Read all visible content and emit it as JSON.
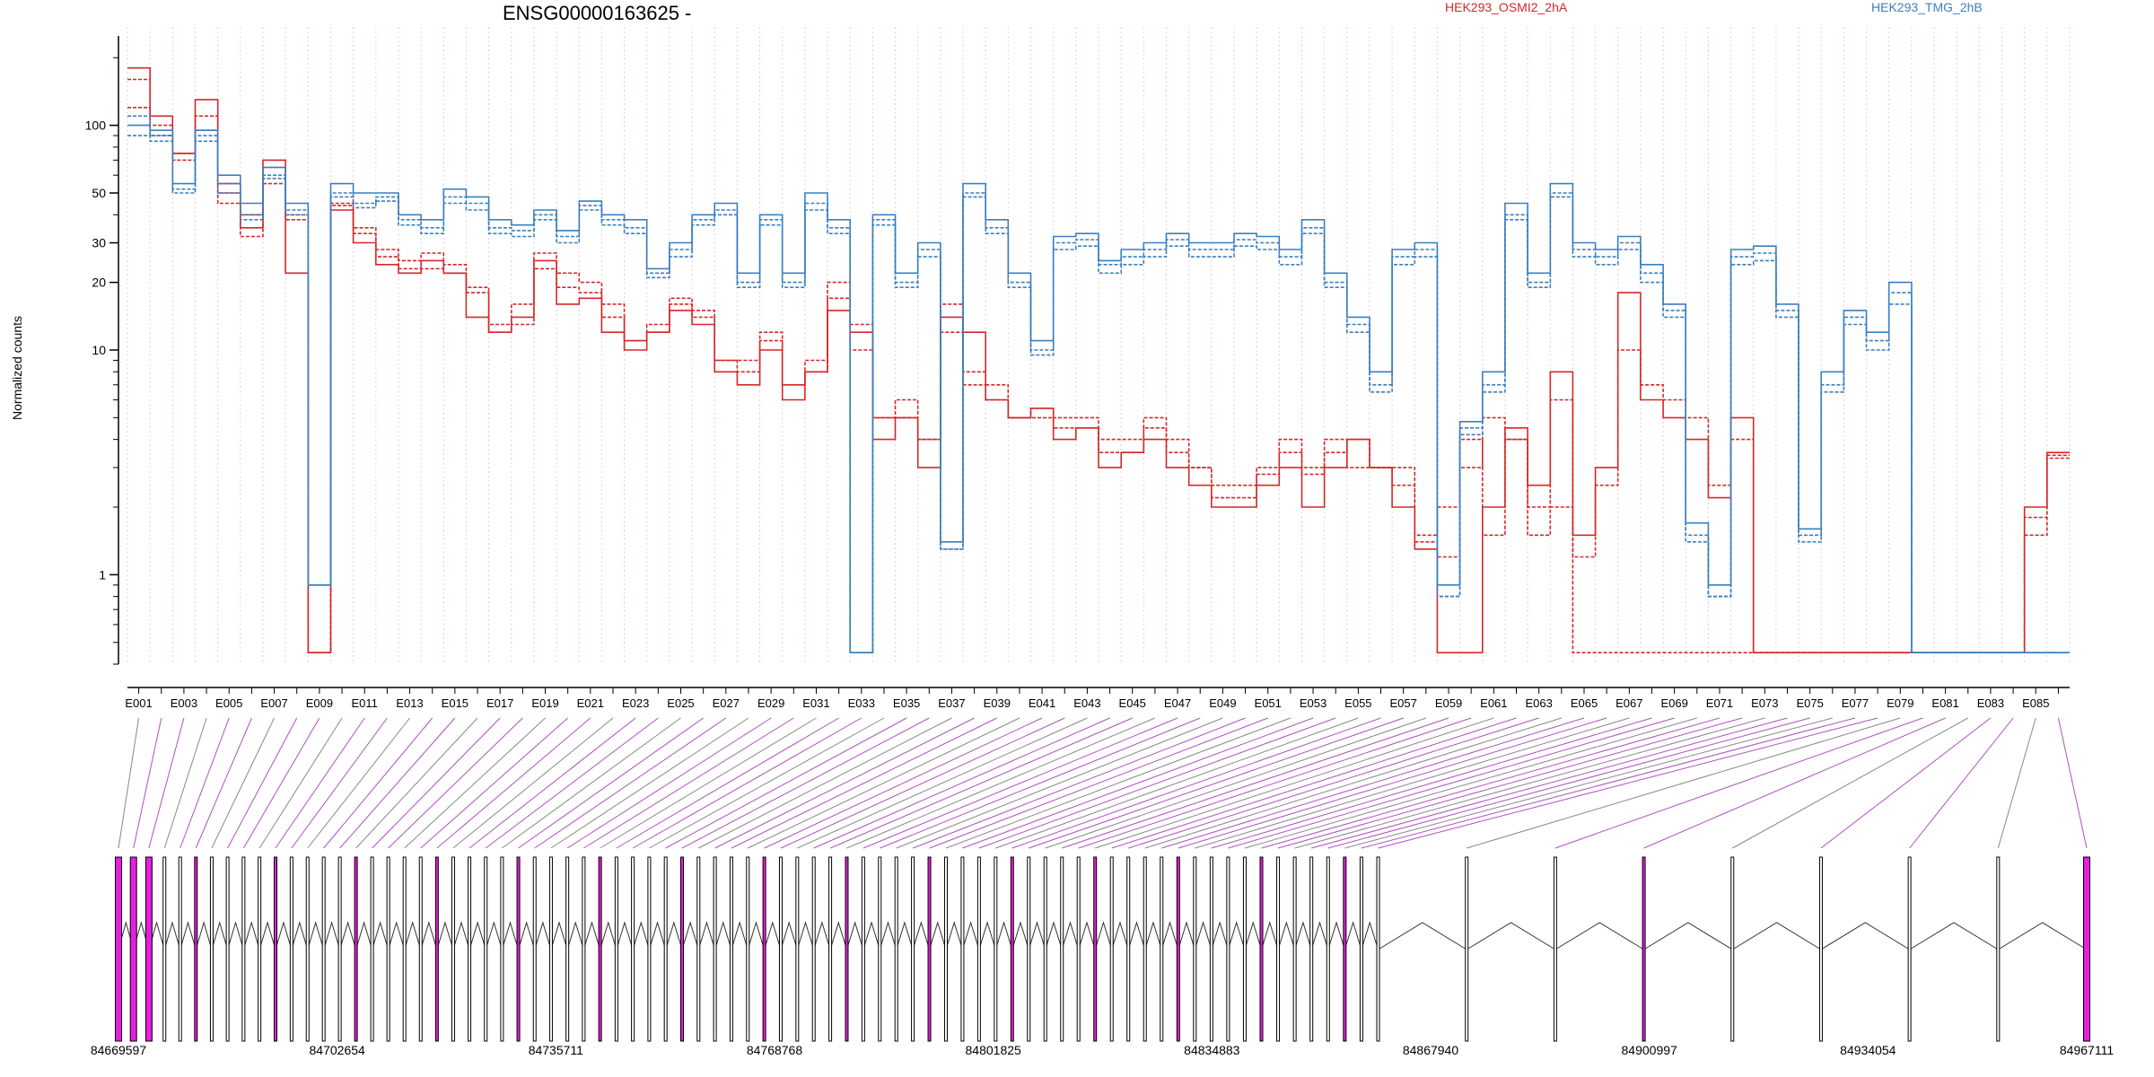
{
  "title": "ENSG00000163625 -",
  "ylabel": "Normalized counts",
  "legend": [
    {
      "label": "HEK293_OSMI2_2hA",
      "color": "#d62728"
    },
    {
      "label": "HEK293_TMG_2hB",
      "color": "#3a7fc1"
    }
  ],
  "colors": {
    "red": "#d62728",
    "blue": "#3a7fc1",
    "exon": "#e81ee0",
    "connector_purple": "#b04fc0"
  },
  "chart_data": {
    "type": "line",
    "yscale": "log",
    "ylim": [
      0.4,
      250
    ],
    "yticks": [
      1,
      10,
      20,
      30,
      50,
      100
    ],
    "grid": "vertical dotted",
    "legend_position": "top",
    "exon_labels_shown": [
      "E001",
      "E003",
      "E005",
      "E007",
      "E009",
      "E011",
      "E013",
      "E015",
      "E017",
      "E019",
      "E021",
      "E023",
      "E025",
      "E027",
      "E029",
      "E031",
      "E033",
      "E035",
      "E037",
      "E039",
      "E041",
      "E043",
      "E045",
      "E047",
      "E049",
      "E051",
      "E053",
      "E055",
      "E057",
      "E059",
      "E061",
      "E063",
      "E065",
      "E067",
      "E069",
      "E071",
      "E073",
      "E075",
      "E077",
      "E079",
      "E081",
      "E083",
      "E085"
    ],
    "n_exons": 86,
    "series": [
      {
        "name": "HEK293_OSMI2_2hA",
        "color": "#d62728",
        "values": [
          180,
          110,
          75,
          130,
          55,
          35,
          70,
          22,
          0.45,
          42,
          30,
          24,
          22,
          25,
          22,
          14,
          12,
          14,
          25,
          16,
          17,
          12,
          10,
          12,
          15,
          13,
          8,
          7,
          10,
          6,
          8,
          15,
          12,
          4,
          5,
          3,
          14,
          12,
          6,
          5,
          5.5,
          4,
          4.5,
          3,
          3.5,
          4,
          3,
          2.5,
          2,
          2,
          2.5,
          3,
          2,
          3,
          4,
          3,
          2,
          1.3,
          0.45,
          0.45,
          2,
          4.5,
          2.5,
          8,
          1.5,
          3,
          18,
          6,
          5,
          4,
          2.2,
          5,
          0.45,
          0.45,
          0.45,
          0.45,
          0.45,
          0.45,
          0.45,
          0.45,
          0.45,
          0.45,
          0.45,
          0.45,
          2,
          3.5
        ]
      },
      {
        "name": "HEK293_OSMI2_2hA",
        "color": "#d62728",
        "values": [
          160,
          90,
          75,
          110,
          50,
          40,
          65,
          40,
          0.45,
          45,
          35,
          28,
          25,
          27,
          24,
          19,
          13,
          16,
          27,
          19,
          18,
          14,
          11,
          13,
          17,
          15,
          9,
          9,
          12,
          7,
          9,
          17,
          10,
          5,
          6,
          4,
          16,
          8,
          7,
          5,
          5.5,
          5,
          5,
          4,
          4,
          5,
          4,
          3,
          2.5,
          2.5,
          3,
          4,
          3,
          4,
          3,
          3,
          2.5,
          1.5,
          2,
          4,
          1.5,
          4,
          1.5,
          2,
          0.45,
          0.45,
          0.45,
          0.45,
          0.45,
          0.45,
          0.45,
          0.45,
          0.45,
          0.45,
          0.45,
          0.45,
          0.45,
          0.45,
          0.45,
          0.45,
          0.45,
          0.45,
          0.45,
          0.45,
          1.5,
          3.3
        ]
      },
      {
        "name": "HEK293_OSMI2_2hA",
        "color": "#d62728",
        "values": [
          120,
          100,
          70,
          95,
          45,
          32,
          55,
          38,
          0.45,
          44,
          33,
          26,
          23,
          23,
          22,
          18,
          12,
          13,
          23,
          22,
          20,
          16,
          11,
          12,
          16,
          14,
          9,
          8,
          11,
          7,
          8,
          20,
          13,
          5,
          5,
          4,
          12,
          7,
          6,
          5,
          5,
          4.5,
          4.5,
          3.5,
          3.5,
          4.5,
          3.5,
          3,
          2.2,
          2.2,
          2.8,
          3.5,
          2.8,
          3.5,
          4,
          3,
          3,
          1.4,
          1.2,
          3,
          5,
          4,
          2,
          6,
          1.2,
          2.5,
          10,
          7,
          6,
          5,
          2.5,
          4,
          0.45,
          0.45,
          0.45,
          0.45,
          0.45,
          0.45,
          0.45,
          0.45,
          0.45,
          0.45,
          0.45,
          0.45,
          1.8,
          3.4
        ]
      },
      {
        "name": "HEK293_TMG_2hB",
        "color": "#3a7fc1",
        "values": [
          100,
          95,
          55,
          95,
          60,
          45,
          65,
          45,
          0.9,
          55,
          50,
          50,
          40,
          38,
          52,
          48,
          38,
          36,
          42,
          34,
          46,
          40,
          38,
          23,
          30,
          40,
          45,
          22,
          40,
          22,
          50,
          38,
          0.45,
          40,
          22,
          30,
          1.4,
          55,
          38,
          22,
          11,
          32,
          33,
          25,
          28,
          30,
          33,
          30,
          30,
          33,
          32,
          28,
          38,
          22,
          14,
          8,
          28,
          30,
          0.9,
          4.8,
          8,
          45,
          22,
          55,
          30,
          28,
          32,
          24,
          16,
          1.7,
          0.9,
          28,
          29,
          16,
          1.6,
          8,
          15,
          12,
          20,
          0.45,
          0.45,
          0.45,
          0.45,
          0.45,
          0.45,
          0.45
        ]
      },
      {
        "name": "HEK293_TMG_2hB",
        "color": "#3a7fc1",
        "values": [
          110,
          90,
          50,
          90,
          55,
          40,
          60,
          42,
          0.9,
          50,
          45,
          48,
          38,
          35,
          48,
          45,
          35,
          34,
          40,
          32,
          44,
          38,
          35,
          22,
          28,
          38,
          42,
          20,
          38,
          20,
          45,
          35,
          0.45,
          38,
          20,
          28,
          1.3,
          50,
          35,
          20,
          10,
          30,
          31,
          24,
          26,
          28,
          31,
          28,
          28,
          31,
          30,
          26,
          35,
          20,
          13,
          7,
          26,
          28,
          0.8,
          4.5,
          7,
          40,
          20,
          50,
          28,
          26,
          30,
          22,
          15,
          1.5,
          0.8,
          26,
          27,
          15,
          1.5,
          7,
          14,
          11,
          18,
          0.45,
          0.45,
          0.45,
          0.45,
          0.45,
          0.45,
          0.45
        ]
      },
      {
        "name": "HEK293_TMG_2hB",
        "color": "#3a7fc1",
        "values": [
          90,
          85,
          52,
          85,
          50,
          38,
          58,
          40,
          0.9,
          48,
          43,
          46,
          36,
          33,
          45,
          42,
          33,
          32,
          38,
          30,
          42,
          36,
          33,
          21,
          26,
          36,
          40,
          19,
          36,
          19,
          42,
          33,
          0.45,
          36,
          19,
          26,
          1.3,
          48,
          33,
          19,
          9.5,
          28,
          29,
          22,
          24,
          26,
          29,
          26,
          26,
          29,
          28,
          24,
          33,
          19,
          12,
          6.5,
          24,
          26,
          0.8,
          4.2,
          6.5,
          38,
          19,
          48,
          26,
          24,
          28,
          20,
          14,
          1.4,
          0.8,
          24,
          25,
          14,
          1.4,
          6.5,
          13,
          10,
          16,
          0.45,
          0.45,
          0.45,
          0.45,
          0.45,
          0.45,
          0.45
        ]
      }
    ],
    "gene_axis_labels": [
      "84669597",
      "84702654",
      "84735711",
      "84768768",
      "84801825",
      "84834883",
      "84867940",
      "84900997",
      "84934054",
      "84967111"
    ],
    "gene_range": [
      84669597,
      84967111
    ]
  }
}
